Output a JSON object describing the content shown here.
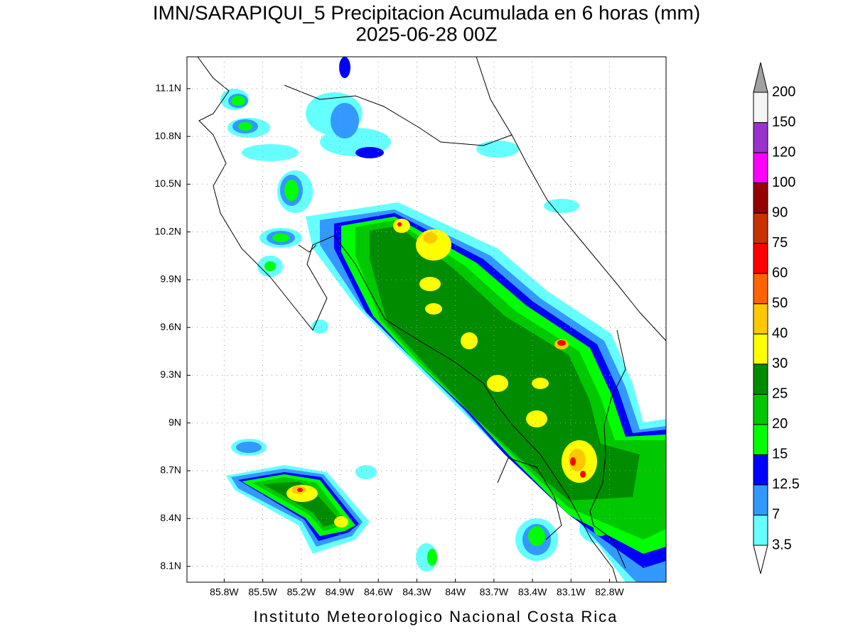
{
  "title": "IMN/SARAPIQUI_5 Precipitacion Acumulada en 6 horas (mm)",
  "subtitle": "2025-06-28 00Z",
  "map": {
    "xlim": [
      -86.09,
      -82.36
    ],
    "ylim": [
      8.0,
      11.3
    ],
    "lon_ticks": [
      {
        "value": -85.8,
        "label": "85.8W"
      },
      {
        "value": -85.5,
        "label": "85.5W"
      },
      {
        "value": -85.2,
        "label": "85.2W"
      },
      {
        "value": -84.9,
        "label": "84.9W"
      },
      {
        "value": -84.6,
        "label": "84.6W"
      },
      {
        "value": -84.3,
        "label": "84.3W"
      },
      {
        "value": -84.0,
        "label": "84W"
      },
      {
        "value": -83.7,
        "label": "83.7W"
      },
      {
        "value": -83.4,
        "label": "83.4W"
      },
      {
        "value": -83.1,
        "label": "83.1W"
      },
      {
        "value": -82.8,
        "label": "82.8W"
      }
    ],
    "lat_ticks": [
      {
        "value": 11.1,
        "label": "11.1N"
      },
      {
        "value": 10.8,
        "label": "10.8N"
      },
      {
        "value": 10.5,
        "label": "10.5N"
      },
      {
        "value": 10.2,
        "label": "10.2N"
      },
      {
        "value": 9.9,
        "label": "9.9N"
      },
      {
        "value": 9.6,
        "label": "9.6N"
      },
      {
        "value": 9.3,
        "label": "9.3N"
      },
      {
        "value": 9.0,
        "label": "9N"
      },
      {
        "value": 8.7,
        "label": "8.7N"
      },
      {
        "value": 8.4,
        "label": "8.4N"
      },
      {
        "value": 8.1,
        "label": "8.1N"
      }
    ],
    "grid": true
  },
  "colorbar": {
    "levels": [
      3.5,
      7,
      12.5,
      15,
      20,
      25,
      30,
      40,
      50,
      60,
      75,
      90,
      100,
      120,
      150,
      200
    ],
    "colors": [
      "#ffffff",
      "#66ffff",
      "#3399ff",
      "#0000ff",
      "#00ff00",
      "#00c800",
      "#008c00",
      "#ffff00",
      "#ffc800",
      "#ff6400",
      "#ff0000",
      "#c83200",
      "#960000",
      "#ff00ff",
      "#9932cc",
      "#f5f5f5",
      "#a0a0a0"
    ]
  },
  "footer": "Instituto Meteorologico Nacional Costa Rica"
}
